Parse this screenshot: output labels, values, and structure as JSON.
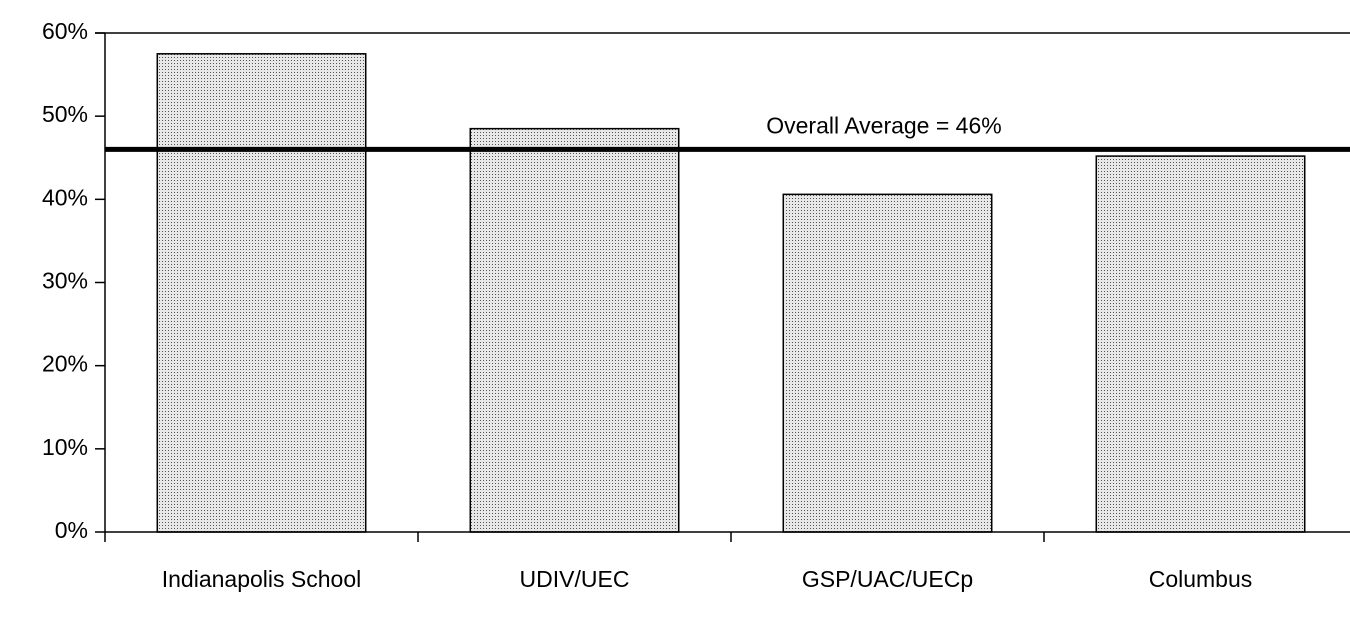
{
  "chart_data": {
    "type": "bar",
    "categories": [
      "Indianapolis School",
      "UDIV/UEC",
      "GSP/UAC/UECp",
      "Columbus"
    ],
    "values": [
      57.5,
      48.5,
      40.6,
      45.2
    ],
    "color": "#c4c4c4",
    "ylim": [
      0,
      60
    ],
    "yticks": [
      {
        "value": 0,
        "label": "0%"
      },
      {
        "value": 10,
        "label": "10%"
      },
      {
        "value": 20,
        "label": "20%"
      },
      {
        "value": 30,
        "label": "30%"
      },
      {
        "value": 40,
        "label": "40%"
      },
      {
        "value": 50,
        "label": "50%"
      },
      {
        "value": 60,
        "label": "60%"
      }
    ],
    "grid": false,
    "reference_line": {
      "value": 46,
      "label": "Overall Average = 46%"
    }
  }
}
